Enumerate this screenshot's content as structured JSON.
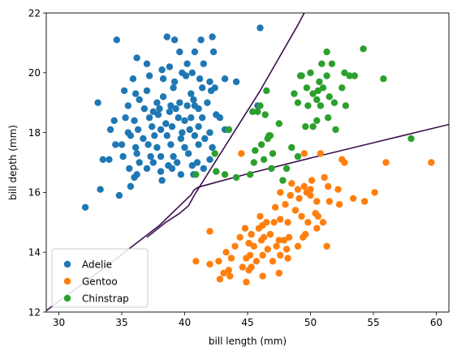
{
  "chart_data": {
    "type": "scatter",
    "title": "",
    "xlabel": "bill length (mm)",
    "ylabel": "bill depth (mm)",
    "xlim": [
      29,
      61
    ],
    "ylim": [
      12,
      22
    ],
    "xticks": [
      30,
      35,
      40,
      45,
      50,
      55,
      60
    ],
    "yticks": [
      12,
      14,
      16,
      18,
      20,
      22
    ],
    "grid": false,
    "legend": "lower-left",
    "series": [
      {
        "name": "Adelie",
        "color": "#1f77b4",
        "points": [
          [
            34.6,
            21.1
          ],
          [
            38.6,
            21.2
          ],
          [
            39.2,
            21.1
          ],
          [
            41.3,
            21.1
          ],
          [
            42.2,
            21.2
          ],
          [
            46.0,
            21.5
          ],
          [
            36.2,
            20.5
          ],
          [
            39.6,
            20.7
          ],
          [
            40.8,
            20.7
          ],
          [
            42.3,
            20.7
          ],
          [
            37.0,
            20.3
          ],
          [
            38.8,
            20.2
          ],
          [
            40.2,
            20.3
          ],
          [
            41.5,
            20.3
          ],
          [
            38.2,
            20.1
          ],
          [
            39.8,
            20.0
          ],
          [
            40.6,
            20.0
          ],
          [
            35.9,
            19.8
          ],
          [
            37.2,
            19.9
          ],
          [
            38.3,
            19.8
          ],
          [
            39.2,
            19.7
          ],
          [
            40.1,
            19.9
          ],
          [
            41.2,
            19.8
          ],
          [
            42.0,
            19.7
          ],
          [
            43.2,
            19.8
          ],
          [
            44.1,
            19.7
          ],
          [
            35.2,
            19.4
          ],
          [
            36.1,
            19.3
          ],
          [
            37.0,
            19.4
          ],
          [
            38.3,
            19.2
          ],
          [
            39.1,
            19.5
          ],
          [
            40.5,
            19.3
          ],
          [
            41.4,
            19.5
          ],
          [
            42.1,
            19.4
          ],
          [
            42.4,
            19.5
          ],
          [
            36.4,
            19.1
          ],
          [
            37.8,
            19.0
          ],
          [
            38.9,
            18.9
          ],
          [
            39.6,
            19.0
          ],
          [
            40.7,
            19.1
          ],
          [
            41.8,
            19.0
          ],
          [
            33.1,
            19.0
          ],
          [
            35.5,
            18.9
          ],
          [
            36.8,
            18.8
          ],
          [
            37.5,
            18.7
          ],
          [
            38.0,
            18.8
          ],
          [
            38.8,
            18.7
          ],
          [
            39.3,
            18.8
          ],
          [
            40.2,
            18.9
          ],
          [
            40.8,
            18.9
          ],
          [
            41.1,
            18.8
          ],
          [
            42.5,
            18.6
          ],
          [
            45.8,
            18.9
          ],
          [
            34.4,
            18.4
          ],
          [
            35.3,
            18.5
          ],
          [
            36.0,
            18.4
          ],
          [
            37.2,
            18.5
          ],
          [
            37.9,
            18.6
          ],
          [
            38.5,
            18.3
          ],
          [
            39.5,
            18.5
          ],
          [
            40.0,
            18.4
          ],
          [
            40.5,
            18.5
          ],
          [
            41.4,
            18.5
          ],
          [
            42.8,
            18.5
          ],
          [
            34.1,
            18.1
          ],
          [
            35.5,
            18.0
          ],
          [
            36.3,
            18.1
          ],
          [
            37.4,
            18.2
          ],
          [
            38.1,
            18.1
          ],
          [
            39.0,
            18.2
          ],
          [
            39.8,
            18.0
          ],
          [
            40.4,
            18.1
          ],
          [
            41.1,
            18.2
          ],
          [
            42.0,
            18.0
          ],
          [
            43.2,
            18.1
          ],
          [
            35.7,
            17.9
          ],
          [
            36.7,
            17.8
          ],
          [
            37.6,
            17.9
          ],
          [
            38.6,
            17.9
          ],
          [
            39.7,
            17.8
          ],
          [
            40.8,
            17.9
          ],
          [
            41.6,
            17.8
          ],
          [
            34.5,
            17.6
          ],
          [
            35.0,
            17.6
          ],
          [
            36.1,
            17.5
          ],
          [
            37.1,
            17.6
          ],
          [
            37.8,
            17.5
          ],
          [
            38.9,
            17.6
          ],
          [
            40.0,
            17.5
          ],
          [
            41.1,
            17.6
          ],
          [
            42.2,
            17.5
          ],
          [
            36.2,
            17.3
          ],
          [
            37.3,
            17.2
          ],
          [
            38.1,
            17.2
          ],
          [
            39.1,
            17.2
          ],
          [
            40.3,
            17.3
          ],
          [
            41.0,
            17.0
          ],
          [
            42.0,
            17.1
          ],
          [
            33.5,
            17.1
          ],
          [
            34.0,
            17.1
          ],
          [
            35.1,
            17.2
          ],
          [
            36.4,
            17.0
          ],
          [
            37.5,
            17.0
          ],
          [
            38.7,
            16.9
          ],
          [
            39.4,
            17.0
          ],
          [
            40.6,
            16.9
          ],
          [
            35.6,
            16.8
          ],
          [
            36.2,
            16.6
          ],
          [
            37.0,
            16.8
          ],
          [
            38.1,
            16.7
          ],
          [
            39.0,
            16.8
          ],
          [
            39.7,
            16.6
          ],
          [
            40.7,
            16.6
          ],
          [
            41.5,
            16.8
          ],
          [
            36.0,
            16.5
          ],
          [
            38.2,
            16.4
          ],
          [
            33.3,
            16.1
          ],
          [
            35.7,
            16.2
          ],
          [
            34.8,
            15.9
          ],
          [
            32.1,
            15.5
          ],
          [
            43.5,
            18.1
          ]
        ]
      },
      {
        "name": "Gentoo",
        "color": "#ff7f0e",
        "points": [
          [
            44.5,
            17.3
          ],
          [
            49.5,
            17.3
          ],
          [
            50.8,
            17.3
          ],
          [
            52.5,
            17.1
          ],
          [
            52.7,
            17.0
          ],
          [
            56.0,
            17.0
          ],
          [
            59.6,
            17.0
          ],
          [
            48.5,
            16.3
          ],
          [
            49.7,
            16.0
          ],
          [
            50.1,
            16.4
          ],
          [
            51.1,
            16.5
          ],
          [
            51.4,
            16.2
          ],
          [
            52.2,
            16.1
          ],
          [
            48.4,
            15.9
          ],
          [
            49.1,
            15.8
          ],
          [
            49.5,
            16.2
          ],
          [
            50.0,
            15.9
          ],
          [
            50.5,
            15.7
          ],
          [
            51.5,
            15.7
          ],
          [
            53.4,
            15.8
          ],
          [
            54.3,
            15.7
          ],
          [
            55.1,
            16.0
          ],
          [
            47.2,
            15.5
          ],
          [
            48.0,
            15.6
          ],
          [
            48.8,
            15.4
          ],
          [
            49.3,
            15.2
          ],
          [
            50.4,
            15.3
          ],
          [
            51.0,
            15.0
          ],
          [
            52.3,
            15.6
          ],
          [
            46.0,
            15.2
          ],
          [
            46.5,
            15.0
          ],
          [
            47.1,
            15.0
          ],
          [
            47.6,
            15.1
          ],
          [
            48.2,
            15.0
          ],
          [
            49.8,
            15.0
          ],
          [
            50.6,
            15.2
          ],
          [
            44.8,
            14.8
          ],
          [
            45.3,
            14.6
          ],
          [
            45.9,
            14.8
          ],
          [
            46.3,
            14.5
          ],
          [
            46.8,
            14.6
          ],
          [
            47.5,
            14.4
          ],
          [
            48.3,
            14.5
          ],
          [
            49.0,
            14.2
          ],
          [
            49.6,
            14.6
          ],
          [
            50.5,
            14.8
          ],
          [
            51.3,
            14.2
          ],
          [
            44.4,
            14.5
          ],
          [
            45.1,
            14.3
          ],
          [
            45.5,
            14.2
          ],
          [
            46.1,
            14.4
          ],
          [
            46.6,
            14.1
          ],
          [
            47.3,
            14.2
          ],
          [
            47.9,
            14.4
          ],
          [
            48.1,
            14.1
          ],
          [
            49.4,
            14.5
          ],
          [
            45.2,
            13.9
          ],
          [
            45.7,
            13.7
          ],
          [
            46.2,
            13.9
          ],
          [
            47.0,
            13.7
          ],
          [
            47.6,
            13.9
          ],
          [
            48.2,
            13.8
          ],
          [
            43.3,
            14.0
          ],
          [
            43.7,
            13.8
          ],
          [
            44.0,
            14.2
          ],
          [
            44.9,
            13.8
          ],
          [
            42.7,
            13.7
          ],
          [
            43.1,
            13.3
          ],
          [
            43.5,
            13.4
          ],
          [
            44.6,
            13.5
          ],
          [
            45.1,
            13.4
          ],
          [
            46.2,
            13.2
          ],
          [
            47.5,
            13.3
          ],
          [
            45.3,
            13.5
          ],
          [
            42.8,
            13.1
          ],
          [
            43.6,
            13.2
          ],
          [
            44.9,
            13.0
          ],
          [
            42.0,
            13.6
          ],
          [
            40.9,
            13.7
          ],
          [
            42.0,
            14.7
          ],
          [
            47.6,
            16.0
          ],
          [
            50.0,
            16.1
          ],
          [
            49.0,
            16.1
          ],
          [
            46.2,
            14.9
          ]
        ]
      },
      {
        "name": "Chinstrap",
        "color": "#2ca02c",
        "points": [
          [
            51.3,
            20.7
          ],
          [
            50.9,
            20.3
          ],
          [
            54.2,
            20.8
          ],
          [
            53.1,
            19.9
          ],
          [
            52.7,
            20.0
          ],
          [
            50.0,
            20.0
          ],
          [
            49.2,
            19.9
          ],
          [
            51.7,
            20.3
          ],
          [
            55.8,
            19.8
          ],
          [
            52.5,
            19.5
          ],
          [
            51.0,
            19.5
          ],
          [
            50.7,
            19.7
          ],
          [
            49.7,
            19.5
          ],
          [
            48.7,
            19.3
          ],
          [
            50.2,
            19.3
          ],
          [
            51.5,
            19.2
          ],
          [
            50.5,
            19.1
          ],
          [
            51.9,
            19.0
          ],
          [
            50.8,
            18.9
          ],
          [
            49.8,
            18.9
          ],
          [
            49.0,
            19.0
          ],
          [
            46.5,
            19.4
          ],
          [
            45.4,
            18.7
          ],
          [
            46.4,
            18.6
          ],
          [
            46.0,
            18.9
          ],
          [
            47.5,
            18.3
          ],
          [
            46.8,
            17.9
          ],
          [
            46.1,
            17.6
          ],
          [
            46.3,
            17.1
          ],
          [
            45.5,
            17.0
          ],
          [
            45.6,
            17.4
          ],
          [
            46.9,
            16.8
          ],
          [
            47.8,
            16.4
          ],
          [
            42.5,
            16.7
          ],
          [
            40.9,
            16.6
          ],
          [
            43.2,
            16.6
          ],
          [
            44.1,
            16.5
          ],
          [
            45.2,
            16.6
          ],
          [
            48.1,
            16.8
          ],
          [
            52.0,
            18.1
          ],
          [
            51.4,
            18.5
          ],
          [
            50.2,
            18.2
          ],
          [
            49.6,
            18.2
          ],
          [
            52.8,
            18.9
          ],
          [
            53.5,
            19.9
          ],
          [
            58.0,
            17.8
          ],
          [
            50.5,
            18.4
          ],
          [
            47.0,
            17.3
          ],
          [
            43.5,
            18.1
          ],
          [
            42.4,
            17.3
          ],
          [
            46.6,
            17.8
          ],
          [
            50.6,
            19.4
          ],
          [
            51.3,
            19.9
          ],
          [
            49.3,
            19.9
          ],
          [
            46.7,
            17.9
          ],
          [
            45.8,
            18.7
          ],
          [
            48.5,
            17.5
          ],
          [
            49.0,
            17.2
          ]
        ]
      }
    ],
    "boundary_color": "#3b0f4f",
    "boundaries": [
      [
        [
          29,
          12.05
        ],
        [
          34,
          13.6
        ],
        [
          38,
          14.9
        ],
        [
          40.5,
          15.92
        ],
        [
          40.75,
          16.08
        ],
        [
          41.1,
          16.18
        ],
        [
          45,
          16.62
        ],
        [
          50,
          17.15
        ],
        [
          55,
          17.66
        ],
        [
          61,
          18.27
        ]
      ],
      [
        [
          37,
          14.5
        ],
        [
          38.5,
          15.0
        ],
        [
          39.6,
          15.3
        ],
        [
          40.3,
          15.55
        ],
        [
          40.9,
          16.0
        ],
        [
          43,
          17.4
        ],
        [
          46,
          19.4
        ],
        [
          49,
          21.6
        ],
        [
          49.5,
          22
        ]
      ]
    ]
  }
}
